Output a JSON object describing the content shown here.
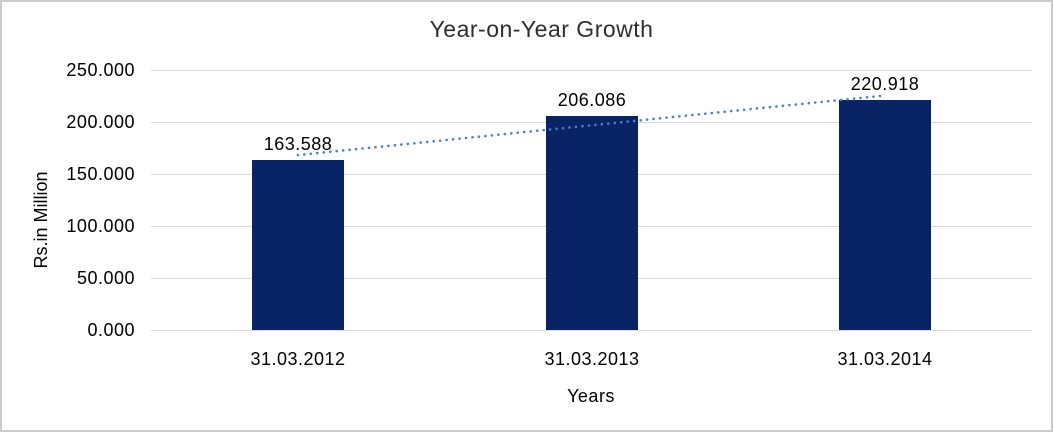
{
  "chart_data": {
    "type": "bar",
    "title": "Year-on-Year Growth",
    "categories": [
      "31.03.2012",
      "31.03.2013",
      "31.03.2014"
    ],
    "values": [
      163.588,
      206.086,
      220.918
    ],
    "value_labels": [
      "163.588",
      "206.086",
      "220.918"
    ],
    "xlabel": "Years",
    "ylabel": "Rs.in Million",
    "y_tick_labels": [
      "250.000",
      "200.000",
      "150.000",
      "100.000",
      "50.000",
      "0.000"
    ],
    "y_tick_values": [
      250,
      200,
      150,
      100,
      50,
      0
    ],
    "ylim": [
      0,
      250
    ],
    "grid": true,
    "legend": "none",
    "trendline": {
      "type": "linear",
      "style": "dotted"
    },
    "colors": {
      "bar": "#082464",
      "trendline": "#4a80c4",
      "gridline": "#d9d9d9",
      "frame_border": "#cbcbcb",
      "title_text": "#2e2e2e",
      "axis_text": "#000000"
    }
  }
}
